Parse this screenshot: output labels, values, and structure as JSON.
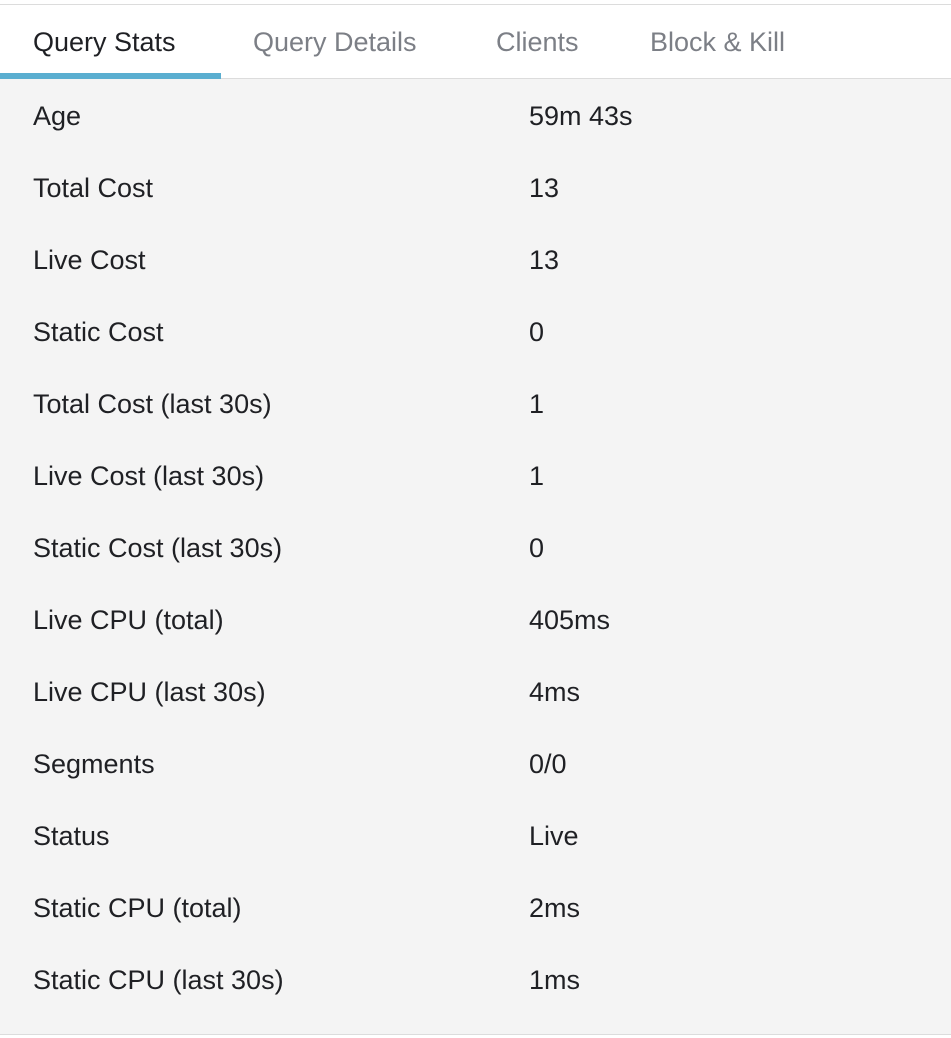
{
  "tabs": [
    {
      "label": "Query Stats",
      "active": true
    },
    {
      "label": "Query Details",
      "active": false
    },
    {
      "label": "Clients",
      "active": false
    },
    {
      "label": "Block & Kill",
      "active": false
    }
  ],
  "stats": [
    {
      "label": "Age",
      "value": "59m 43s"
    },
    {
      "label": "Total Cost",
      "value": "13"
    },
    {
      "label": "Live Cost",
      "value": "13"
    },
    {
      "label": "Static Cost",
      "value": "0"
    },
    {
      "label": "Total Cost (last 30s)",
      "value": "1"
    },
    {
      "label": "Live Cost (last 30s)",
      "value": "1"
    },
    {
      "label": "Static Cost (last 30s)",
      "value": "0"
    },
    {
      "label": "Live CPU (total)",
      "value": "405ms"
    },
    {
      "label": "Live CPU (last 30s)",
      "value": "4ms"
    },
    {
      "label": "Segments",
      "value": "0/0"
    },
    {
      "label": "Status",
      "value": "Live"
    },
    {
      "label": "Static CPU (total)",
      "value": "2ms"
    },
    {
      "label": "Static CPU (last 30s)",
      "value": "1ms"
    }
  ],
  "colors": {
    "accent": "#5aaed0",
    "panel_background": "#f4f4f4",
    "active_tab_text": "#1f2024",
    "inactive_tab_text": "#7c7f86"
  }
}
